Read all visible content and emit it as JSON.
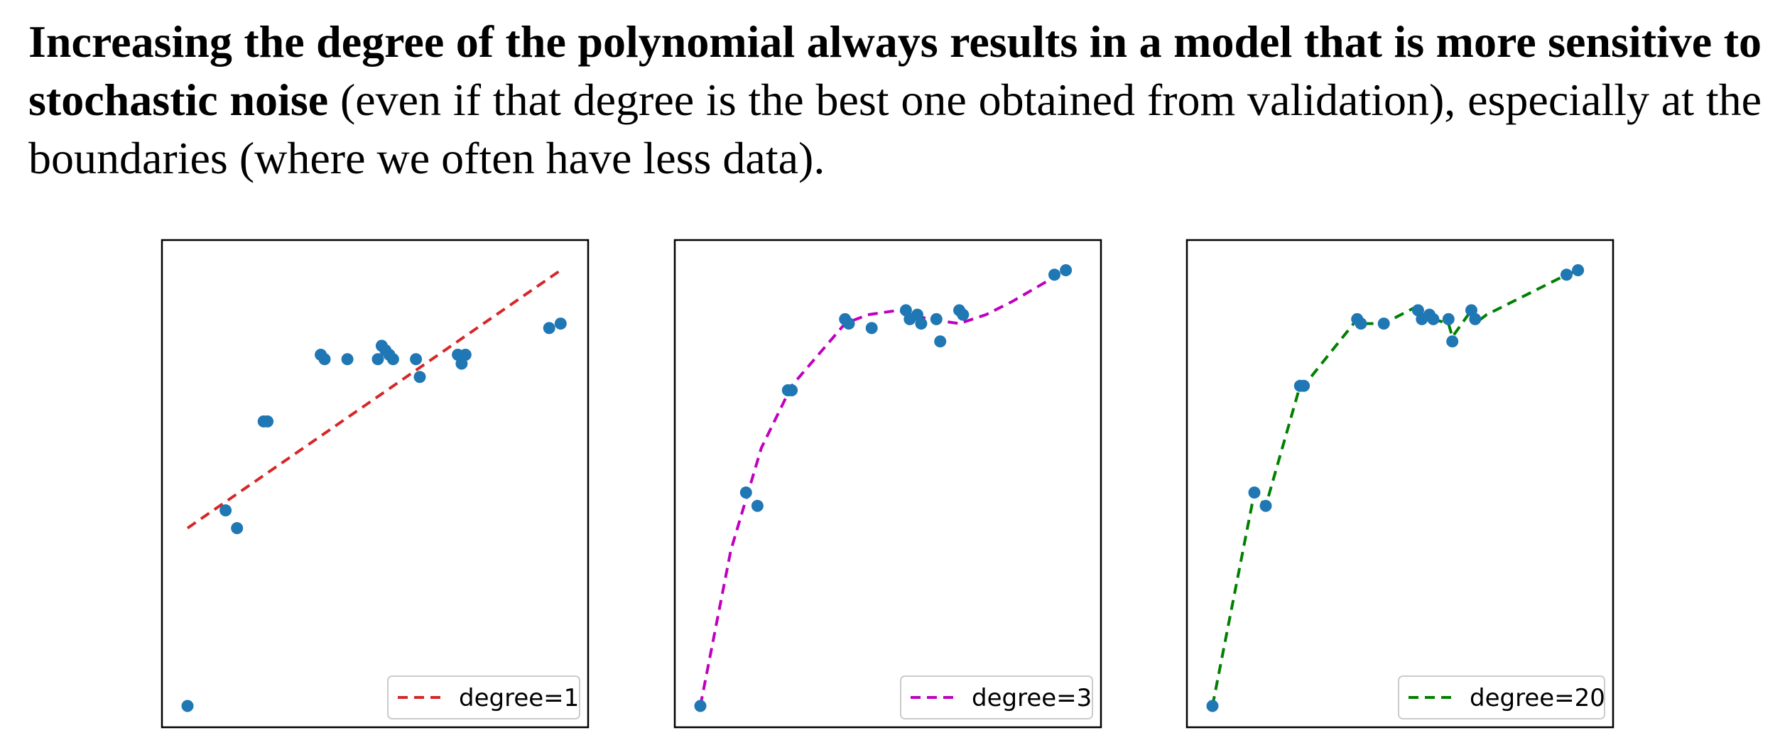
{
  "text": {
    "bold_part": "Increasing the degree of the polynomial always results in a model that is more sensitive to stochastic noise",
    "normal_part": " (even if that degree is the best one obtained from validation), especially at the boundaries (where we often have less data)."
  },
  "colors": {
    "points": "#1f77b4",
    "degree1": "#d62728",
    "degree3": "#bf00bf",
    "degree20": "#008000",
    "frame": "#000000"
  },
  "chart_data": [
    {
      "type": "scatter",
      "legend_position": "lower-right",
      "points": {
        "x": [
          0.0,
          0.1,
          0.13,
          0.2,
          0.21,
          0.35,
          0.36,
          0.42,
          0.5,
          0.51,
          0.52,
          0.53,
          0.54,
          0.6,
          0.61,
          0.71,
          0.72,
          0.73,
          0.95,
          0.98
        ],
        "y": [
          0.0,
          0.44,
          0.4,
          0.64,
          0.64,
          0.79,
          0.78,
          0.78,
          0.78,
          0.81,
          0.8,
          0.79,
          0.78,
          0.78,
          0.74,
          0.79,
          0.77,
          0.79,
          0.85,
          0.86
        ]
      },
      "series": [
        {
          "name": "degree=1",
          "style": "dashed",
          "x": [
            0.0,
            0.98
          ],
          "y": [
            0.4,
            0.98
          ]
        }
      ]
    },
    {
      "type": "scatter",
      "legend_position": "lower-right",
      "points": {
        "x": [
          0.0,
          0.12,
          0.15,
          0.23,
          0.24,
          0.38,
          0.39,
          0.45,
          0.54,
          0.55,
          0.57,
          0.58,
          0.62,
          0.63,
          0.68,
          0.69,
          0.93,
          0.96
        ],
        "y": [
          0.0,
          0.48,
          0.45,
          0.71,
          0.71,
          0.87,
          0.86,
          0.85,
          0.89,
          0.87,
          0.88,
          0.86,
          0.87,
          0.82,
          0.89,
          0.88,
          0.97,
          0.98
        ]
      },
      "series": [
        {
          "name": "degree=3",
          "style": "dashed",
          "x": [
            0.0,
            0.08,
            0.16,
            0.24,
            0.32,
            0.38,
            0.44,
            0.52,
            0.6,
            0.68,
            0.75,
            0.82,
            0.9,
            0.96
          ],
          "y": [
            0.0,
            0.35,
            0.58,
            0.72,
            0.8,
            0.86,
            0.88,
            0.89,
            0.87,
            0.86,
            0.88,
            0.91,
            0.95,
            0.98
          ]
        }
      ]
    },
    {
      "type": "scatter",
      "legend_position": "lower-right",
      "points": {
        "x": [
          0.0,
          0.11,
          0.14,
          0.23,
          0.24,
          0.38,
          0.39,
          0.45,
          0.54,
          0.55,
          0.57,
          0.58,
          0.62,
          0.63,
          0.68,
          0.69,
          0.93,
          0.96
        ],
        "y": [
          0.0,
          0.48,
          0.45,
          0.72,
          0.72,
          0.87,
          0.86,
          0.86,
          0.89,
          0.87,
          0.88,
          0.87,
          0.87,
          0.82,
          0.89,
          0.87,
          0.97,
          0.98
        ]
      },
      "series": [
        {
          "name": "degree=20",
          "style": "dashed",
          "x": [
            0.0,
            0.11,
            0.14,
            0.23,
            0.24,
            0.38,
            0.39,
            0.45,
            0.54,
            0.55,
            0.57,
            0.58,
            0.62,
            0.63,
            0.68,
            0.69,
            0.72,
            0.93,
            0.96
          ],
          "y": [
            0.0,
            0.48,
            0.45,
            0.72,
            0.72,
            0.87,
            0.86,
            0.86,
            0.9,
            0.88,
            0.88,
            0.87,
            0.86,
            0.83,
            0.89,
            0.86,
            0.88,
            0.97,
            0.98
          ]
        }
      ]
    }
  ]
}
